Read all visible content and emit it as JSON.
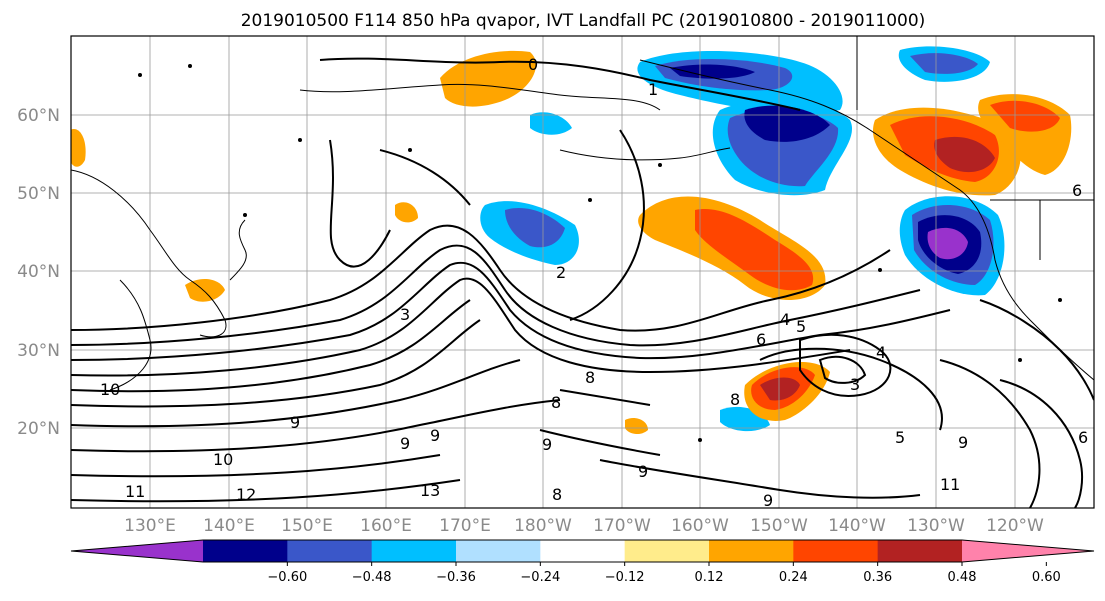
{
  "title": "2019010500 F114 850 hPa qvapor, IVT Landfall PC (2019010800 - 2019011000)",
  "lat_labels": [
    "60°N",
    "50°N",
    "40°N",
    "30°N",
    "20°N"
  ],
  "lon_labels": [
    "130°E",
    "140°E",
    "150°E",
    "160°E",
    "170°E",
    "180°W",
    "170°W",
    "160°W",
    "150°W",
    "140°W",
    "130°W",
    "120°W"
  ],
  "colorbar": {
    "colors": [
      "#9932cc",
      "#00008b",
      "#3a57c9",
      "#00bfff",
      "#b0e0ff",
      "#ffffff",
      "#ffec8b",
      "#ffa500",
      "#ff4500",
      "#b22222",
      "#ff82ab"
    ],
    "tick_labels": [
      "−0.60",
      "−0.48",
      "−0.36",
      "−0.24",
      "−0.12",
      "0.12",
      "0.24",
      "0.36",
      "0.48",
      "0.60"
    ]
  },
  "contour_labels": [
    "0",
    "1",
    "2",
    "3",
    "4",
    "5",
    "6",
    "8",
    "9",
    "9",
    "9",
    "10",
    "10",
    "11",
    "12",
    "13",
    "9",
    "8",
    "9",
    "4",
    "3",
    "6",
    "8",
    "5",
    "9",
    "11",
    "6",
    "9",
    "8"
  ]
}
